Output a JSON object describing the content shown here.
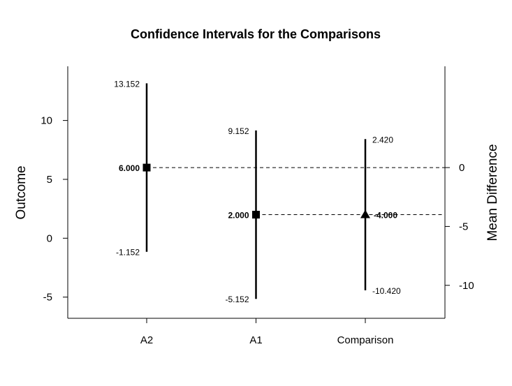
{
  "chart_data": {
    "type": "scatter",
    "title": "Confidence Intervals for the Comparisons",
    "ylabel": "Outcome",
    "y2label": "Mean Difference",
    "categories": [
      "A2",
      "A1",
      "Comparison"
    ],
    "ylim": [
      -6.8,
      14.6
    ],
    "yticks": [
      -5,
      0,
      5,
      10
    ],
    "y2ticks": [
      -10,
      -5,
      0
    ],
    "y2_offset": 6,
    "points": [
      {
        "category": "A2",
        "estimate": 6,
        "lower": -1.152,
        "upper": 13.152,
        "estimate_label": "6.000",
        "lower_label": "-1.152",
        "upper_label": "13.152",
        "marker": "square",
        "axis": "left"
      },
      {
        "category": "A1",
        "estimate": 2,
        "lower": -5.152,
        "upper": 9.152,
        "estimate_label": "2.000",
        "lower_label": "-5.152",
        "upper_label": "9.152",
        "marker": "square",
        "axis": "left"
      },
      {
        "category": "Comparison",
        "estimate": -4,
        "lower": -10.42,
        "upper": 2.42,
        "estimate_label": "-4.000",
        "lower_label": "-10.420",
        "upper_label": "2.420",
        "marker": "triangle",
        "axis": "right"
      }
    ],
    "reference_lines": [
      {
        "y": 6,
        "from_category": "A2",
        "to": "right-edge"
      },
      {
        "y": 2,
        "from_category": "A1",
        "to": "right-edge"
      }
    ],
    "grid": false
  }
}
